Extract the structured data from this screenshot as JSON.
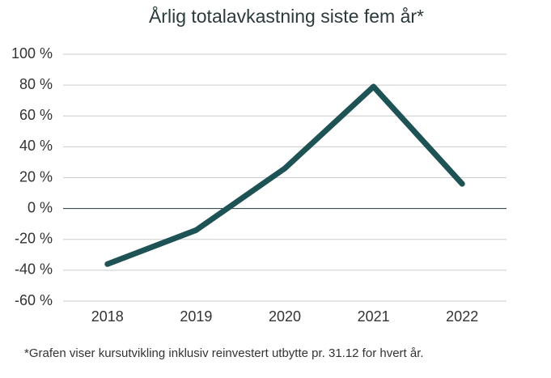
{
  "chart_data": {
    "type": "line",
    "title": "Årlig totalavkastning siste fem år*",
    "categories": [
      "2018",
      "2019",
      "2020",
      "2021",
      "2022"
    ],
    "values": [
      -36,
      -14,
      26,
      79,
      16
    ],
    "color": "#1e5356",
    "ylim": [
      -60,
      100
    ],
    "yticks": [
      {
        "value": -60,
        "label": "-60 %"
      },
      {
        "value": -40,
        "label": "-40 %"
      },
      {
        "value": -20,
        "label": "-20 %"
      },
      {
        "value": 0,
        "label": "0 %"
      },
      {
        "value": 20,
        "label": "20 %"
      },
      {
        "value": 40,
        "label": "40 %"
      },
      {
        "value": 60,
        "label": "60 %"
      },
      {
        "value": 80,
        "label": "80 %"
      },
      {
        "value": 100,
        "label": "100 %"
      }
    ],
    "grid": true,
    "note": "*Grafen viser kursutvikling inklusiv reinvestert utbytte pr. 31.12 for hvert år."
  }
}
